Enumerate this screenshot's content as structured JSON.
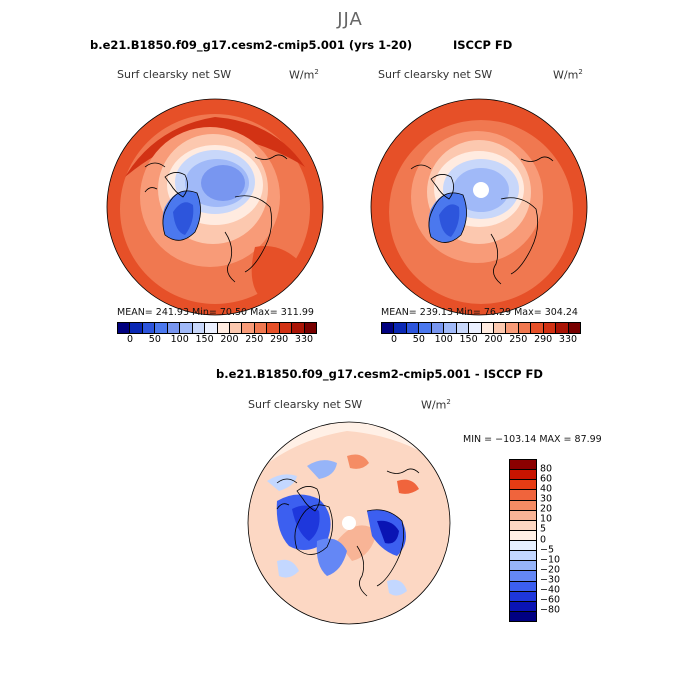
{
  "figure": {
    "season": "JJA",
    "model_title": "b.e21.B1850.f09_g17.cesm2-cmip5.001 (yrs 1-20)",
    "obs_title": "ISCCP FD",
    "diff_title": "b.e21.B1850.f09_g17.cesm2-cmip5.001 - ISCCP FD"
  },
  "panels": {
    "model": {
      "variable": "Surf clearsky net SW",
      "units": "W/m",
      "units_exp": "2",
      "stats": "MEAN= 241.93   Min=  70.50   Max= 311.99"
    },
    "obs": {
      "variable": "Surf clearsky net SW",
      "units": "W/m",
      "units_exp": "2",
      "stats": "MEAN= 239.13   Min=  76.29   Max= 304.24"
    },
    "diff": {
      "variable": "Surf clearsky net SW",
      "units": "W/m",
      "units_exp": "2",
      "stats": "MIN = −103.14  MAX =  87.99"
    }
  },
  "colorbars": {
    "abs_colors": [
      "#00007f",
      "#0a28b4",
      "#2d55dc",
      "#4b78ee",
      "#7896f0",
      "#a0b9f8",
      "#c8d7fa",
      "#ebf0ff",
      "#ffebe0",
      "#fcc8af",
      "#f89b78",
      "#f07850",
      "#e65028",
      "#d23214",
      "#aa1405",
      "#780000"
    ],
    "abs_ticks": [
      "0",
      "50",
      "100",
      "150",
      "200",
      "250",
      "290",
      "330"
    ],
    "diff_colors": [
      "#8b0000",
      "#c81400",
      "#e63c14",
      "#f0643c",
      "#f58c64",
      "#f8b496",
      "#fcd7c3",
      "#fff0e6",
      "#e6f0ff",
      "#c3d7ff",
      "#96b4f8",
      "#6487f5",
      "#3c5ff0",
      "#1e37dc",
      "#0a14b4",
      "#000082"
    ],
    "diff_ticks": [
      "80",
      "60",
      "40",
      "30",
      "20",
      "10",
      "5",
      "0",
      "−5",
      "−10",
      "−20",
      "−30",
      "−40",
      "−60",
      "−80"
    ]
  }
}
